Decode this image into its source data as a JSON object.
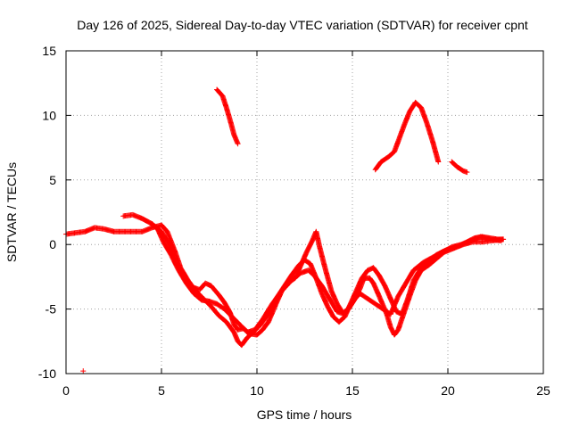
{
  "chart_data": {
    "type": "scatter",
    "title": "Day 126 of 2025, Sidereal Day-to-day VTEC variation (SDTVAR) for receiver cpnt",
    "xlabel": "GPS time / hours",
    "ylabel": "SDTVAR / TECUs",
    "xlim": [
      0,
      25
    ],
    "ylim": [
      -10,
      15
    ],
    "x_ticks": [
      0,
      5,
      10,
      15,
      20,
      25
    ],
    "x_tick_labels": [
      "0",
      "5",
      "10",
      "15",
      "20",
      "25"
    ],
    "y_ticks": [
      -10,
      -5,
      0,
      5,
      10,
      15
    ],
    "y_tick_labels": [
      "-10",
      "-5",
      "0",
      "5",
      "10",
      "15"
    ],
    "grid": true,
    "marker": "+",
    "colors": {
      "series": "#ff0000",
      "axis": "#000000",
      "grid": "#a0a0a0"
    },
    "series": [
      {
        "name": "track-a",
        "points": [
          [
            0.0,
            0.8
          ],
          [
            0.5,
            0.9
          ],
          [
            1.0,
            1.0
          ],
          [
            1.5,
            1.3
          ],
          [
            2.0,
            1.2
          ],
          [
            2.5,
            1.0
          ],
          [
            3.0,
            1.0
          ],
          [
            3.5,
            1.0
          ],
          [
            4.0,
            1.0
          ],
          [
            4.5,
            1.3
          ],
          [
            5.0,
            1.5
          ],
          [
            5.3,
            1.0
          ],
          [
            5.7,
            -0.5
          ],
          [
            6.0,
            -1.8
          ],
          [
            6.4,
            -2.8
          ],
          [
            6.8,
            -3.6
          ],
          [
            7.2,
            -4.2
          ],
          [
            7.6,
            -4.8
          ],
          [
            8.0,
            -5.5
          ],
          [
            8.4,
            -6.0
          ],
          [
            8.8,
            -6.8
          ],
          [
            9.0,
            -7.5
          ],
          [
            9.2,
            -7.8
          ],
          [
            9.5,
            -7.2
          ],
          [
            9.8,
            -6.8
          ],
          [
            10.2,
            -6.2
          ],
          [
            10.6,
            -5.3
          ],
          [
            11.0,
            -4.2
          ],
          [
            11.4,
            -3.3
          ],
          [
            11.8,
            -2.4
          ],
          [
            12.2,
            -1.6
          ],
          [
            12.5,
            -1.2
          ],
          [
            12.8,
            -1.5
          ],
          [
            13.1,
            -2.6
          ],
          [
            13.4,
            -3.8
          ],
          [
            13.7,
            -4.8
          ],
          [
            14.0,
            -5.6
          ],
          [
            14.3,
            -6.0
          ],
          [
            14.6,
            -5.6
          ],
          [
            14.9,
            -4.6
          ],
          [
            15.2,
            -3.6
          ],
          [
            15.5,
            -2.6
          ],
          [
            15.8,
            -2.0
          ],
          [
            16.1,
            -1.8
          ],
          [
            16.4,
            -2.4
          ],
          [
            16.7,
            -3.2
          ],
          [
            17.0,
            -4.2
          ],
          [
            17.3,
            -5.2
          ],
          [
            17.6,
            -5.4
          ],
          [
            17.9,
            -4.2
          ],
          [
            18.2,
            -2.8
          ],
          [
            18.6,
            -1.8
          ],
          [
            19.0,
            -1.3
          ],
          [
            19.4,
            -0.8
          ],
          [
            19.8,
            -0.5
          ],
          [
            20.2,
            -0.3
          ],
          [
            20.6,
            -0.1
          ],
          [
            21.0,
            0.2
          ],
          [
            21.4,
            0.5
          ],
          [
            21.8,
            0.6
          ],
          [
            22.2,
            0.5
          ],
          [
            22.6,
            0.4
          ],
          [
            22.9,
            0.4
          ]
        ]
      },
      {
        "name": "track-b",
        "points": [
          [
            3.0,
            2.2
          ],
          [
            3.5,
            2.3
          ],
          [
            4.0,
            2.0
          ],
          [
            4.5,
            1.6
          ],
          [
            5.0,
            1.0
          ],
          [
            5.4,
            0.0
          ],
          [
            5.8,
            -1.5
          ],
          [
            6.2,
            -2.6
          ],
          [
            6.6,
            -3.3
          ],
          [
            7.0,
            -3.5
          ],
          [
            7.3,
            -3.0
          ],
          [
            7.6,
            -3.2
          ],
          [
            8.0,
            -3.9
          ],
          [
            8.3,
            -4.5
          ],
          [
            8.6,
            -5.3
          ],
          [
            8.8,
            -6.2
          ],
          [
            9.0,
            -6.6
          ],
          [
            9.3,
            -6.5
          ],
          [
            9.6,
            -6.9
          ],
          [
            10.0,
            -7.0
          ],
          [
            10.3,
            -6.6
          ],
          [
            10.6,
            -6.0
          ],
          [
            11.0,
            -4.6
          ],
          [
            11.3,
            -3.6
          ],
          [
            11.6,
            -3.0
          ],
          [
            12.0,
            -2.6
          ],
          [
            12.3,
            -1.6
          ],
          [
            12.6,
            -0.6
          ],
          [
            12.9,
            0.3
          ],
          [
            13.1,
            1.0
          ],
          [
            13.3,
            -0.3
          ],
          [
            13.6,
            -2.0
          ],
          [
            13.9,
            -3.6
          ],
          [
            14.2,
            -4.6
          ],
          [
            14.5,
            -5.3
          ],
          [
            14.8,
            -5.0
          ],
          [
            15.1,
            -4.3
          ],
          [
            15.4,
            -3.4
          ],
          [
            15.6,
            -2.6
          ],
          [
            15.9,
            -2.6
          ],
          [
            16.1,
            -3.0
          ],
          [
            16.4,
            -4.0
          ],
          [
            16.8,
            -5.4
          ],
          [
            17.0,
            -6.4
          ],
          [
            17.2,
            -7.0
          ],
          [
            17.4,
            -6.6
          ],
          [
            17.7,
            -5.3
          ],
          [
            18.0,
            -4.0
          ],
          [
            18.3,
            -2.8
          ],
          [
            18.6,
            -2.0
          ],
          [
            19.0,
            -1.6
          ],
          [
            19.4,
            -1.1
          ],
          [
            19.8,
            -0.6
          ],
          [
            20.3,
            -0.3
          ],
          [
            20.8,
            0.0
          ],
          [
            21.3,
            0.2
          ],
          [
            21.8,
            0.2
          ],
          [
            22.3,
            0.3
          ],
          [
            22.9,
            0.4
          ]
        ]
      },
      {
        "name": "track-c",
        "points": [
          [
            4.5,
            1.6
          ],
          [
            4.8,
            1.2
          ],
          [
            5.1,
            0.2
          ],
          [
            5.5,
            -0.8
          ],
          [
            5.9,
            -2.0
          ],
          [
            6.3,
            -3.0
          ],
          [
            6.7,
            -3.8
          ],
          [
            7.1,
            -4.3
          ],
          [
            7.5,
            -4.4
          ],
          [
            7.9,
            -4.6
          ],
          [
            8.3,
            -5.0
          ],
          [
            8.7,
            -5.6
          ],
          [
            9.1,
            -6.2
          ],
          [
            9.5,
            -6.8
          ],
          [
            9.9,
            -6.6
          ],
          [
            10.3,
            -5.8
          ],
          [
            10.8,
            -4.6
          ],
          [
            11.3,
            -3.6
          ],
          [
            11.8,
            -2.8
          ],
          [
            12.3,
            -2.2
          ],
          [
            12.7,
            -2.0
          ],
          [
            13.0,
            -2.4
          ],
          [
            13.4,
            -3.2
          ],
          [
            13.8,
            -4.2
          ],
          [
            14.2,
            -5.2
          ],
          [
            14.6,
            -5.4
          ],
          [
            15.0,
            -4.4
          ],
          [
            15.4,
            -3.8
          ],
          [
            15.8,
            -4.2
          ],
          [
            16.2,
            -4.6
          ],
          [
            16.6,
            -5.0
          ],
          [
            17.0,
            -5.4
          ],
          [
            17.4,
            -4.0
          ],
          [
            17.8,
            -3.0
          ],
          [
            18.2,
            -2.0
          ],
          [
            18.7,
            -1.4
          ],
          [
            19.2,
            -1.0
          ],
          [
            19.7,
            -0.6
          ],
          [
            20.2,
            -0.2
          ],
          [
            20.7,
            0.0
          ],
          [
            21.2,
            0.3
          ],
          [
            21.7,
            0.6
          ],
          [
            22.2,
            0.4
          ],
          [
            22.8,
            0.3
          ]
        ]
      },
      {
        "name": "track-d",
        "points": [
          [
            7.9,
            12.0
          ],
          [
            8.2,
            11.5
          ],
          [
            8.4,
            10.6
          ],
          [
            8.6,
            9.6
          ],
          [
            8.8,
            8.5
          ],
          [
            9.0,
            7.8
          ]
        ]
      },
      {
        "name": "track-e",
        "points": [
          [
            16.2,
            5.8
          ],
          [
            16.5,
            6.4
          ],
          [
            16.9,
            6.8
          ],
          [
            17.2,
            7.2
          ],
          [
            17.4,
            8.0
          ],
          [
            17.7,
            9.2
          ],
          [
            18.0,
            10.3
          ],
          [
            18.3,
            11.0
          ],
          [
            18.6,
            10.6
          ],
          [
            18.9,
            9.4
          ],
          [
            19.2,
            8.0
          ],
          [
            19.5,
            6.4
          ]
        ]
      },
      {
        "name": "track-f",
        "points": [
          [
            20.2,
            6.4
          ],
          [
            20.5,
            6.0
          ],
          [
            20.8,
            5.7
          ],
          [
            21.0,
            5.6
          ]
        ]
      },
      {
        "name": "track-g",
        "points": [
          [
            0.9,
            -9.8
          ]
        ]
      }
    ]
  }
}
